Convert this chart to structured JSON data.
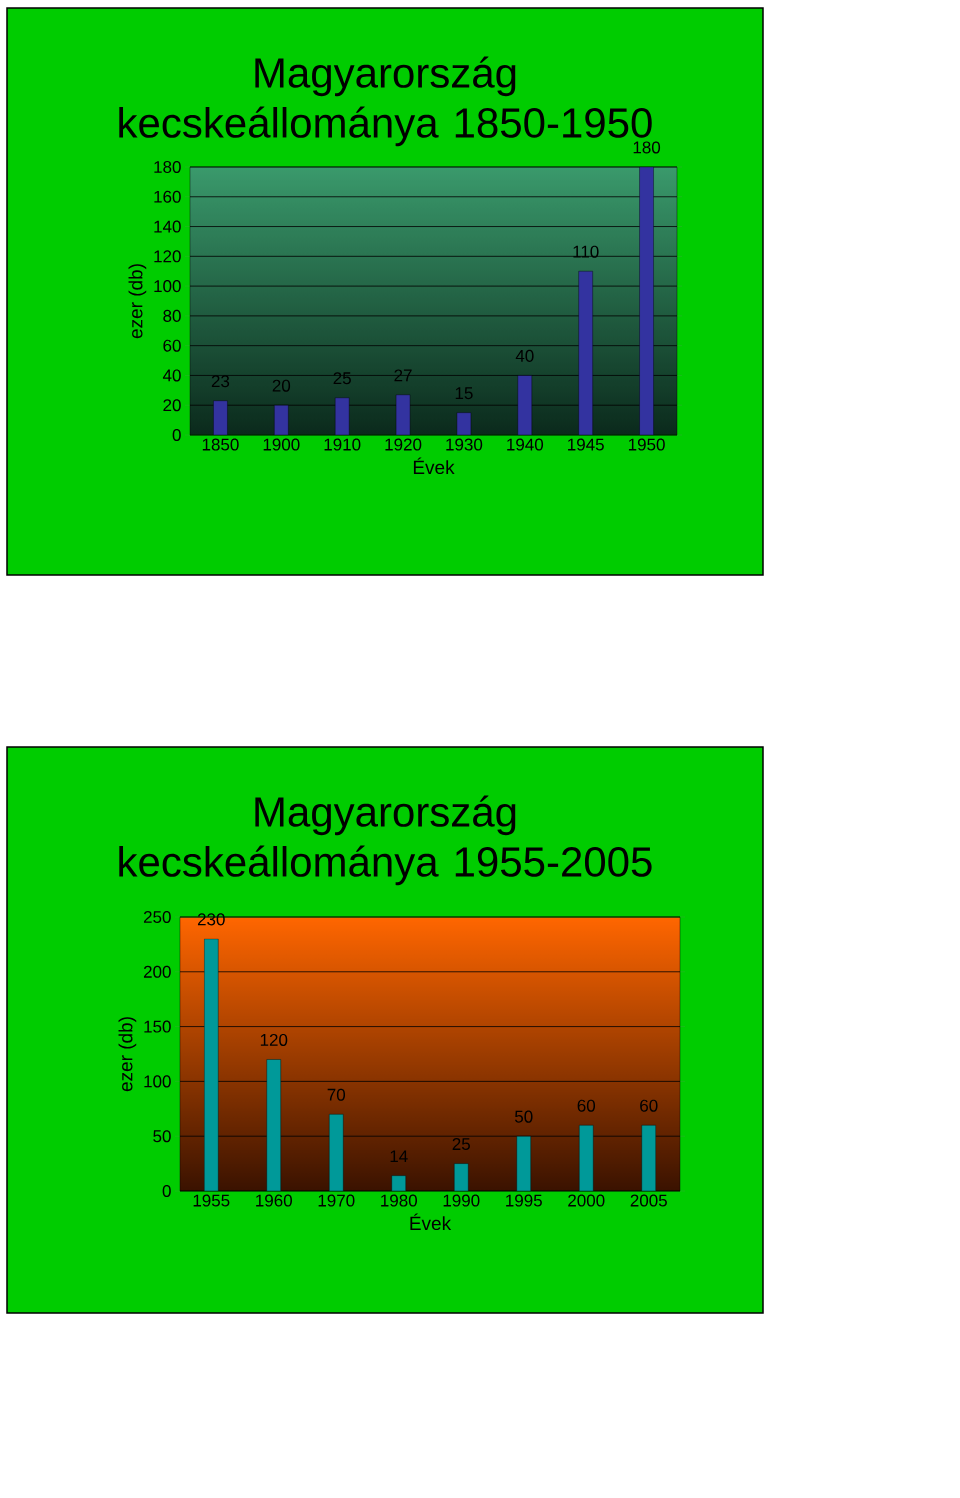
{
  "chart_data": [
    {
      "type": "bar",
      "title": "Magyarország kecskeállománya 1850-1950",
      "xlabel": "Évek",
      "ylabel": "ezer (db)",
      "categories": [
        "1850",
        "1900",
        "1910",
        "1920",
        "1930",
        "1940",
        "1945",
        "1950"
      ],
      "values": [
        23,
        20,
        25,
        27,
        15,
        40,
        110,
        180
      ],
      "color": "#3333a0",
      "ylim": [
        0,
        180
      ],
      "yticks": [
        0,
        20,
        40,
        60,
        80,
        100,
        120,
        140,
        160,
        180
      ],
      "grid": "y",
      "data_labels": true
    },
    {
      "type": "bar",
      "title": "Magyarország kecskeállománya 1955-2005",
      "xlabel": "Évek",
      "ylabel": "ezer (db)",
      "categories": [
        "1955",
        "1960",
        "1970",
        "1980",
        "1990",
        "1995",
        "2000",
        "2005"
      ],
      "values": [
        230,
        120,
        70,
        14,
        25,
        50,
        60,
        60
      ],
      "color": "#009999",
      "ylim": [
        0,
        250
      ],
      "yticks": [
        0,
        50,
        100,
        150,
        200,
        250
      ],
      "grid": "y",
      "data_labels": true
    }
  ]
}
